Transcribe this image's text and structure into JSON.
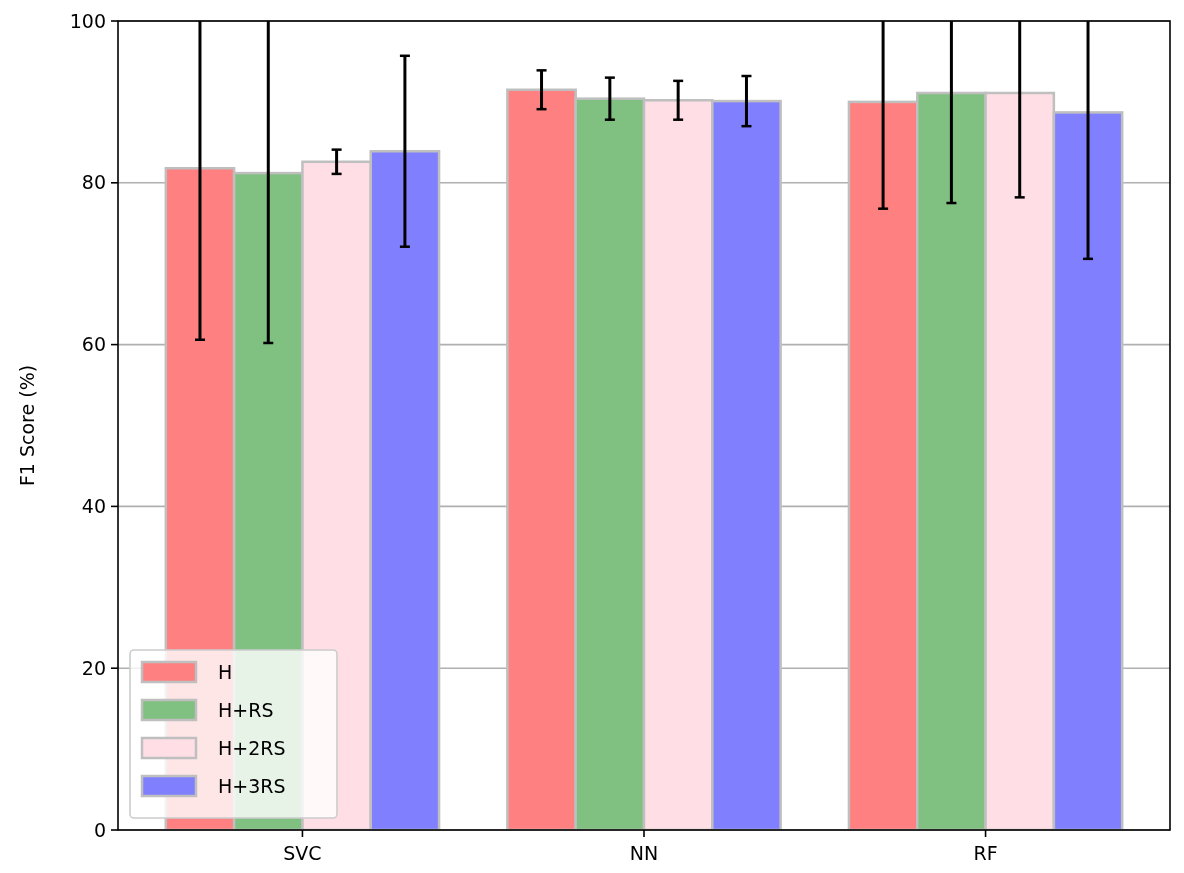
{
  "chart_data": {
    "type": "bar",
    "ylabel": "F1 Score (%)",
    "categories": [
      "SVC",
      "NN",
      "RF"
    ],
    "series": [
      {
        "name": "H",
        "color": "#ff8080",
        "values": [
          81.8,
          91.5,
          90.0
        ],
        "errors": [
          21.2,
          2.4,
          13.2
        ]
      },
      {
        "name": "H+RS",
        "color": "#80c080",
        "values": [
          81.2,
          90.4,
          91.1
        ],
        "errors": [
          21.0,
          2.6,
          13.6
        ]
      },
      {
        "name": "H+2RS",
        "color": "#ffdfe5",
        "values": [
          82.6,
          90.2,
          91.1
        ],
        "errors": [
          1.5,
          2.4,
          12.9
        ]
      },
      {
        "name": "H+3RS",
        "color": "#8080ff",
        "values": [
          83.9,
          90.1,
          88.7
        ],
        "errors": [
          11.8,
          3.1,
          18.1
        ]
      }
    ],
    "ylim": [
      0,
      100
    ],
    "yticks": [
      0,
      20,
      40,
      60,
      80,
      100
    ],
    "grid": "y",
    "legend": "bottom left"
  }
}
